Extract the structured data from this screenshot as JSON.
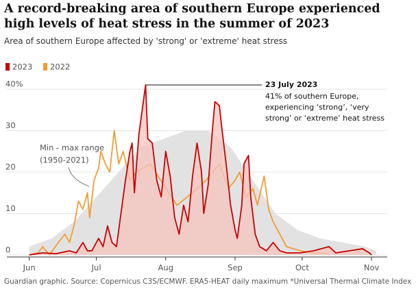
{
  "chart_data": {
    "type": "line",
    "title": "A record-breaking area of southern Europe experienced high levels of heat stress in the summer of 2023",
    "subtitle": "Area of southern Europe affected by 'strong' or 'extreme' heat stress",
    "source": "Guardian graphic. Source: Copernicus C3S/ECMWF. ERA5-HEAT daily maximum *Universal Thermal Climate Index",
    "xlim": [
      -10,
      160
    ],
    "xticks": [
      {
        "value": 0,
        "label": "Jun"
      },
      {
        "value": 30,
        "label": "Jul"
      },
      {
        "value": 61,
        "label": "Aug"
      },
      {
        "value": 92,
        "label": "Sep"
      },
      {
        "value": 122,
        "label": "Oct"
      },
      {
        "value": 153,
        "label": "Nov"
      }
    ],
    "ylim": [
      0,
      42
    ],
    "yticks": [
      0,
      10,
      20,
      30,
      {
        "value": 40,
        "label": "40%"
      }
    ],
    "grid": true,
    "range": {
      "label": [
        "Min - max range",
        "(1950-2021)"
      ],
      "color": "#e2e2e2",
      "x": [
        0,
        10,
        20,
        30,
        40,
        50,
        60,
        70,
        80,
        90,
        100,
        110,
        120,
        130,
        140,
        150,
        155
      ],
      "max": [
        2,
        4,
        8,
        14,
        20,
        26,
        28,
        30,
        30,
        26,
        18,
        10,
        6,
        4,
        3,
        2,
        1
      ]
    },
    "series": [
      {
        "name": "2023",
        "color": "#c70000",
        "fill": "#f5c4bd",
        "x": [
          0,
          6,
          12,
          18,
          21,
          24,
          26,
          28,
          31,
          33,
          35,
          37,
          39,
          41,
          43,
          45,
          46,
          47,
          49,
          50,
          52,
          53,
          55,
          57,
          59,
          61,
          63,
          65,
          67,
          69,
          71,
          73,
          75,
          77,
          78,
          80,
          82,
          83,
          85,
          86,
          88,
          90,
          92,
          93,
          95,
          96,
          98,
          99,
          101,
          103,
          106,
          109,
          112,
          115,
          121,
          127,
          134,
          137,
          143,
          149,
          152,
          153
        ],
        "values": [
          0,
          0.5,
          0.3,
          1,
          0.5,
          3,
          1,
          1,
          4,
          2,
          7,
          3,
          2,
          10,
          18,
          25,
          27,
          15,
          29,
          33,
          41,
          28,
          27,
          18,
          14,
          25,
          19,
          9,
          5,
          12,
          8,
          19,
          27,
          20,
          10,
          17,
          31,
          37,
          36,
          31,
          22,
          12,
          6,
          4,
          12,
          22,
          24,
          14,
          5,
          2,
          1,
          3,
          1,
          0.5,
          0.5,
          1,
          2,
          0.5,
          1,
          1.5,
          0.5,
          0
        ]
      },
      {
        "name": "2022",
        "color": "#f39c34",
        "x": [
          0,
          4,
          6,
          9,
          13,
          16,
          18,
          20,
          22,
          24,
          26,
          27,
          29,
          31,
          32,
          34,
          36,
          38,
          40,
          42,
          45,
          48,
          54,
          60,
          66,
          73,
          79,
          85,
          89,
          92,
          94,
          97,
          100,
          102,
          105,
          107,
          109,
          112,
          115,
          121,
          127,
          134
        ],
        "values": [
          0,
          0.5,
          2,
          0,
          3,
          5,
          3,
          7,
          13,
          11,
          15,
          9,
          18,
          21,
          25,
          22,
          20,
          30,
          22,
          25,
          18,
          20,
          22,
          17,
          12,
          15,
          18,
          22,
          16,
          18,
          20,
          14,
          16,
          12,
          19,
          11,
          8,
          5,
          2,
          1,
          0.5,
          0.3
        ]
      }
    ],
    "annotation": {
      "x": 52,
      "y": 41,
      "title": "23 July 2023",
      "lines": [
        "41% of southern Europe,",
        "experiencing ‘strong’, ‘very",
        "strong’ or ‘extreme’ heat stress"
      ]
    }
  }
}
